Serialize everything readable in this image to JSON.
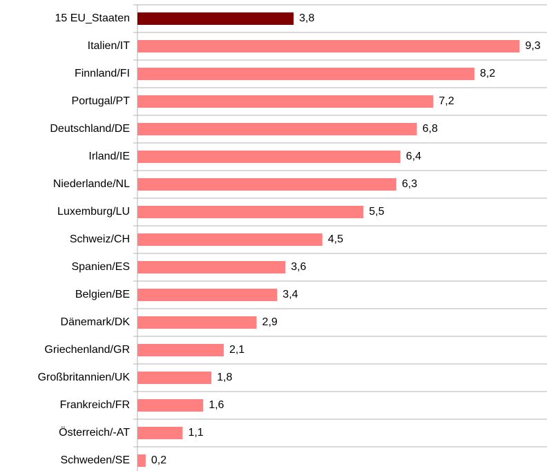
{
  "chart_data": {
    "type": "bar",
    "orientation": "horizontal",
    "categories": [
      "15 EU_Staaten",
      "Italien/IT",
      "Finnland/FI",
      "Portugal/PT",
      "Deutschland/DE",
      "Irland/IE",
      "Niederlande/NL",
      "Luxemburg/LU",
      "Schweiz/CH",
      "Spanien/ES",
      "Belgien/BE",
      "Dänemark/DK",
      "Griechenland/GR",
      "Großbritannien/UK",
      "Frankreich/FR",
      "Österreich/-AT",
      "Schweden/SE"
    ],
    "values": [
      3.8,
      9.3,
      8.2,
      7.2,
      6.8,
      6.4,
      6.3,
      5.5,
      4.5,
      3.6,
      3.4,
      2.9,
      2.1,
      1.8,
      1.6,
      1.1,
      0.2
    ],
    "value_labels": [
      "3,8",
      "9,3",
      "8,2",
      "7,2",
      "6,8",
      "6,4",
      "6,3",
      "5,5",
      "4,5",
      "3,6",
      "3,4",
      "2,9",
      "2,1",
      "1,8",
      "1,6",
      "1,1",
      "0,2"
    ],
    "colors": [
      "#800000",
      "#ff8080",
      "#ff8080",
      "#ff8080",
      "#ff8080",
      "#ff8080",
      "#ff8080",
      "#ff8080",
      "#ff8080",
      "#ff8080",
      "#ff8080",
      "#ff8080",
      "#ff8080",
      "#ff8080",
      "#ff8080",
      "#ff8080",
      "#ff8080"
    ]
  }
}
